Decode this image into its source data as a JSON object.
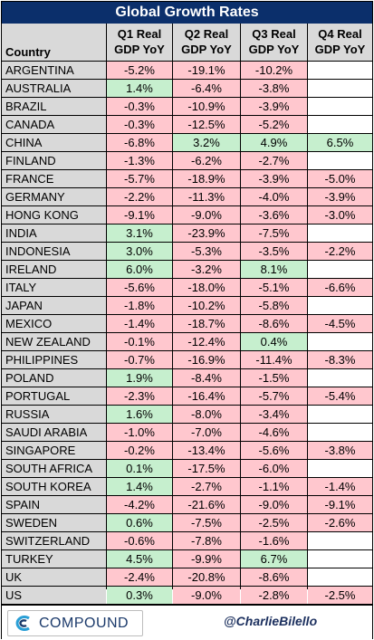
{
  "colors": {
    "positive": "#c6efce",
    "negative": "#ffc7ce",
    "header_bg": "#d9d9d9",
    "title_bg": "#0b2f6b",
    "brand": "#1b3a6b"
  },
  "chart_data": {
    "type": "table",
    "title": "Global Growth Rates",
    "columns": [
      "Country",
      "Q1 Real GDP YoY",
      "Q2 Real GDP YoY",
      "Q3 Real GDP YoY",
      "Q4 Real GDP YoY"
    ],
    "header_lines": [
      [
        "Country"
      ],
      [
        "Q1 Real",
        "GDP YoY"
      ],
      [
        "Q2 Real",
        "GDP YoY"
      ],
      [
        "Q3 Real",
        "GDP YoY"
      ],
      [
        "Q4 Real",
        "GDP YoY"
      ]
    ],
    "rows": [
      [
        "ARGENTINA",
        "-5.2%",
        "-19.1%",
        "-10.2%",
        ""
      ],
      [
        "AUSTRALIA",
        "1.4%",
        "-6.4%",
        "-3.8%",
        ""
      ],
      [
        "BRAZIL",
        "-0.3%",
        "-10.9%",
        "-3.9%",
        ""
      ],
      [
        "CANADA",
        "-0.3%",
        "-12.5%",
        "-5.2%",
        ""
      ],
      [
        "CHINA",
        "-6.8%",
        "3.2%",
        "4.9%",
        "6.5%"
      ],
      [
        "FINLAND",
        "-1.3%",
        "-6.2%",
        "-2.7%",
        ""
      ],
      [
        "FRANCE",
        "-5.7%",
        "-18.9%",
        "-3.9%",
        "-5.0%"
      ],
      [
        "GERMANY",
        "-2.2%",
        "-11.3%",
        "-4.0%",
        "-3.9%"
      ],
      [
        "HONG KONG",
        "-9.1%",
        "-9.0%",
        "-3.6%",
        "-3.0%"
      ],
      [
        "INDIA",
        "3.1%",
        "-23.9%",
        "-7.5%",
        ""
      ],
      [
        "INDONESIA",
        "3.0%",
        "-5.3%",
        "-3.5%",
        "-2.2%"
      ],
      [
        "IRELAND",
        "6.0%",
        "-3.2%",
        "8.1%",
        ""
      ],
      [
        "ITALY",
        "-5.6%",
        "-18.0%",
        "-5.1%",
        "-6.6%"
      ],
      [
        "JAPAN",
        "-1.8%",
        "-10.2%",
        "-5.8%",
        ""
      ],
      [
        "MEXICO",
        "-1.4%",
        "-18.7%",
        "-8.6%",
        "-4.5%"
      ],
      [
        "NEW ZEALAND",
        "-0.1%",
        "-12.4%",
        "0.4%",
        ""
      ],
      [
        "PHILIPPINES",
        "-0.7%",
        "-16.9%",
        "-11.4%",
        "-8.3%"
      ],
      [
        "POLAND",
        "1.9%",
        "-8.4%",
        "-1.5%",
        ""
      ],
      [
        "PORTUGAL",
        "-2.3%",
        "-16.4%",
        "-5.7%",
        "-5.4%"
      ],
      [
        "RUSSIA",
        "1.6%",
        "-8.0%",
        "-3.4%",
        ""
      ],
      [
        "SAUDI ARABIA",
        "-1.0%",
        "-7.0%",
        "-4.6%",
        ""
      ],
      [
        "SINGAPORE",
        "-0.2%",
        "-13.4%",
        "-5.6%",
        "-3.8%"
      ],
      [
        "SOUTH AFRICA",
        "0.1%",
        "-17.5%",
        "-6.0%",
        ""
      ],
      [
        "SOUTH KOREA",
        "1.4%",
        "-2.7%",
        "-1.1%",
        "-1.4%"
      ],
      [
        "SPAIN",
        "-4.2%",
        "-21.6%",
        "-9.0%",
        "-9.1%"
      ],
      [
        "SWEDEN",
        "0.6%",
        "-7.5%",
        "-2.5%",
        "-2.6%"
      ],
      [
        "SWITZERLAND",
        "-0.6%",
        "-7.8%",
        "-1.6%",
        ""
      ],
      [
        "TURKEY",
        "4.5%",
        "-9.9%",
        "6.7%",
        ""
      ],
      [
        "UK",
        "-2.4%",
        "-20.8%",
        "-8.6%",
        ""
      ],
      [
        "US",
        "0.3%",
        "-9.0%",
        "-2.8%",
        "-2.5%"
      ]
    ]
  },
  "footer": {
    "logo_text": "COMPOUND",
    "logo_icon": "compound-c-icon",
    "handle": "@CharlieBilello"
  }
}
